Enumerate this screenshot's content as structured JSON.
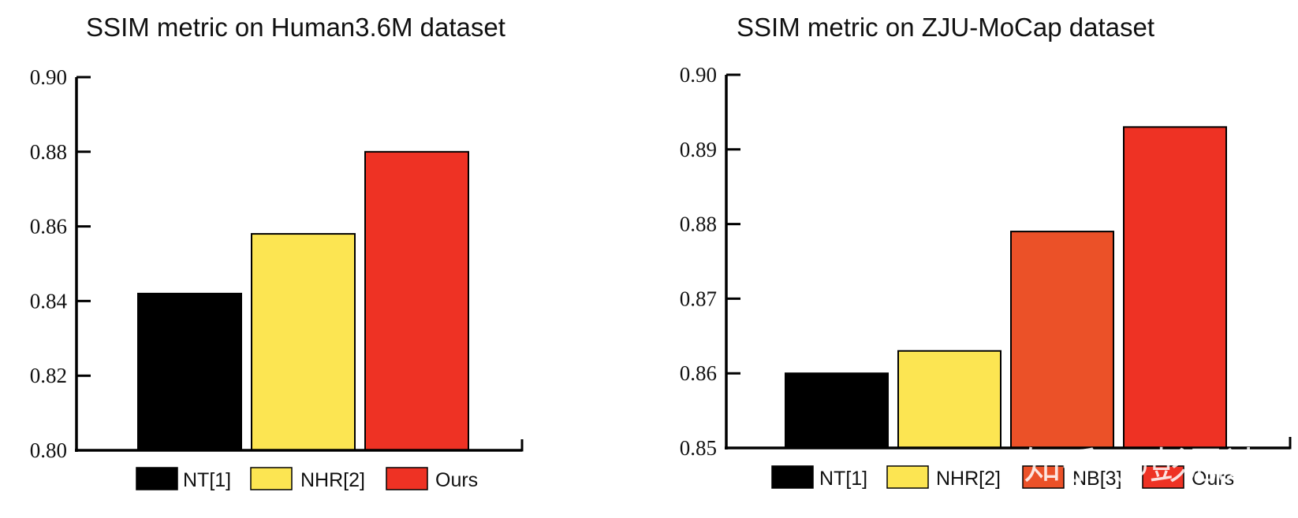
{
  "watermark": "知乎 @彭思达",
  "chart_data": [
    {
      "type": "bar",
      "title": "SSIM metric on Human3.6M dataset",
      "xlabel": "",
      "ylabel": "",
      "ylim": [
        0.8,
        0.9
      ],
      "yticks": [
        "0.80",
        "0.82",
        "0.84",
        "0.86",
        "0.88",
        "0.90"
      ],
      "grid": false,
      "legend_position": "bottom",
      "series": [
        {
          "name": "NT[1]",
          "value": 0.842,
          "color": "#000000"
        },
        {
          "name": "NHR[2]",
          "value": 0.858,
          "color": "#FCE552"
        },
        {
          "name": "Ours",
          "value": 0.88,
          "color": "#EE3224"
        }
      ]
    },
    {
      "type": "bar",
      "title": "SSIM metric on ZJU-MoCap dataset",
      "xlabel": "",
      "ylabel": "",
      "ylim": [
        0.85,
        0.9
      ],
      "yticks": [
        "0.85",
        "0.86",
        "0.87",
        "0.88",
        "0.89",
        "0.90"
      ],
      "grid": false,
      "legend_position": "bottom",
      "series": [
        {
          "name": "NT[1]",
          "value": 0.86,
          "color": "#000000"
        },
        {
          "name": "NHR[2]",
          "value": 0.863,
          "color": "#FCE552"
        },
        {
          "name": "NB[3]",
          "value": 0.879,
          "color": "#EB5128"
        },
        {
          "name": "Ours",
          "value": 0.893,
          "color": "#EE3224"
        }
      ]
    }
  ]
}
